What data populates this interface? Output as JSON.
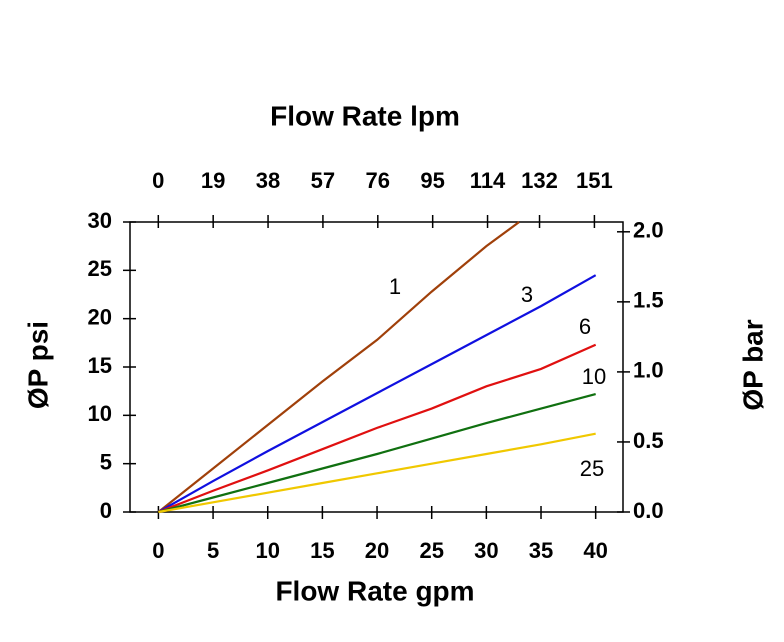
{
  "chart_data": {
    "type": "line",
    "x_label": "Flow Rate gpm",
    "x2_label": "Flow Rate lpm",
    "y_label": "ØP psi",
    "y2_label": "ØP bar",
    "xlim": [
      -2.6,
      42.5
    ],
    "xticks": [
      0,
      5,
      10,
      15,
      20,
      25,
      30,
      35,
      40
    ],
    "x2lim": [
      -9.8,
      160.9
    ],
    "x2ticks": [
      0,
      19,
      38,
      57,
      76,
      95,
      114,
      132,
      151
    ],
    "ylim": [
      0,
      30
    ],
    "yticks": [
      0,
      5,
      10,
      15,
      20,
      25,
      30
    ],
    "y2lim": [
      0,
      2.07
    ],
    "y2ticks": [
      {
        "value": 0,
        "label": "0.0"
      },
      {
        "value": 0.5,
        "label": "0.5"
      },
      {
        "value": 1,
        "label": "1.0"
      },
      {
        "value": 1.5,
        "label": "1.5"
      },
      {
        "value": 2,
        "label": "2.0"
      }
    ],
    "grid": false,
    "series": [
      {
        "name": "1",
        "color": "#a0400a",
        "x": [
          0,
          5,
          10,
          15,
          20,
          25,
          30,
          33
        ],
        "values": [
          0,
          4.5,
          9,
          13.5,
          17.8,
          22.8,
          27.5,
          30
        ]
      },
      {
        "name": "3",
        "color": "#1010e0",
        "x": [
          0,
          5,
          10,
          15,
          20,
          25,
          30,
          35,
          40
        ],
        "values": [
          0,
          3.2,
          6.3,
          9.3,
          12.3,
          15.3,
          18.3,
          21.3,
          24.5
        ]
      },
      {
        "name": "6",
        "color": "#e01010",
        "x": [
          0,
          5,
          10,
          15,
          20,
          25,
          30,
          35,
          40
        ],
        "values": [
          0,
          2.2,
          4.3,
          6.5,
          8.7,
          10.7,
          13,
          14.8,
          17.3
        ]
      },
      {
        "name": "10",
        "color": "#107010",
        "x": [
          0,
          5,
          10,
          15,
          20,
          25,
          30,
          35,
          40
        ],
        "values": [
          0,
          1.5,
          3,
          4.5,
          6,
          7.6,
          9.2,
          10.7,
          12.2
        ]
      },
      {
        "name": "25",
        "color": "#f0c800",
        "x": [
          0,
          5,
          10,
          15,
          20,
          25,
          30,
          35,
          40
        ],
        "values": [
          0,
          1,
          2,
          3,
          4,
          5,
          6,
          7,
          8.1
        ]
      }
    ]
  }
}
